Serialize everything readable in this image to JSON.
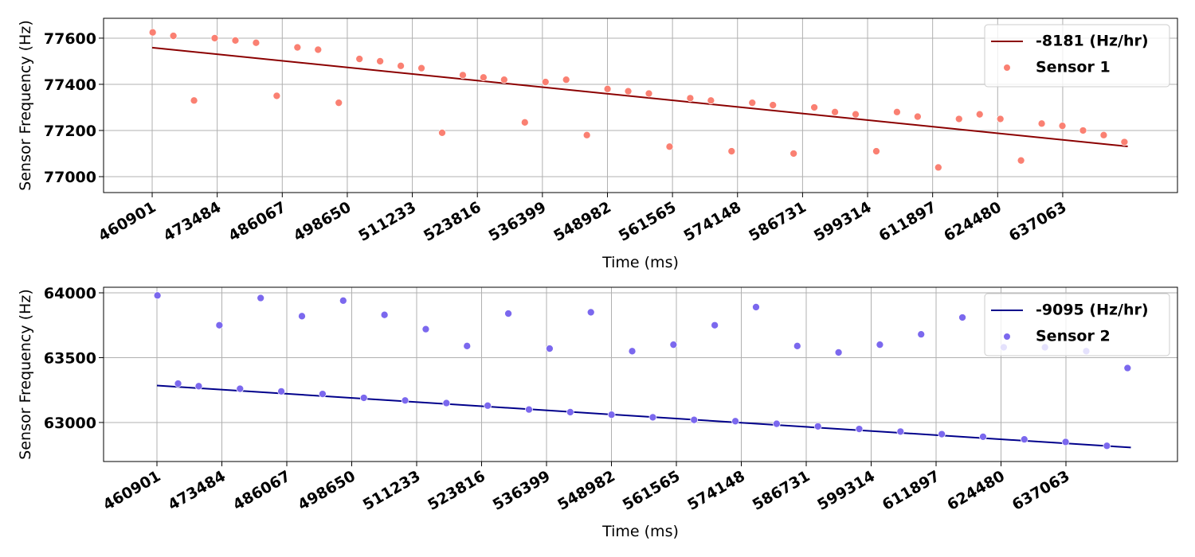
{
  "chart_data": [
    {
      "type": "scatter",
      "xlabel": "Time (ms)",
      "ylabel": "Sensor Frequency (Hz)",
      "xlim": [
        451495,
        659268
      ],
      "ylim": [
        76931,
        77686
      ],
      "xticks": [
        460901,
        473484,
        486067,
        498650,
        511233,
        523816,
        536399,
        548982,
        561565,
        574148,
        586731,
        599314,
        611897,
        624480,
        637063
      ],
      "yticks": [
        77000,
        77200,
        77400,
        77600
      ],
      "grid": true,
      "legend": "upper right",
      "series": [
        {
          "name": "-8181 (Hz/hr)",
          "type": "line",
          "color": "#8b0000",
          "x": [
            460901,
            649646
          ],
          "values": [
            77559,
            77131
          ]
        },
        {
          "name": "Sensor 1",
          "type": "scatter",
          "color": "#fa8072",
          "x": [
            461000,
            465000,
            469000,
            473000,
            477000,
            481000,
            485000,
            489000,
            493000,
            497000,
            501000,
            505000,
            509000,
            513000,
            517000,
            521000,
            525000,
            529000,
            533000,
            537000,
            541000,
            545000,
            549000,
            553000,
            557000,
            561000,
            565000,
            569000,
            573000,
            577000,
            581000,
            585000,
            589000,
            593000,
            597000,
            601000,
            605000,
            609000,
            613000,
            617000,
            621000,
            625000,
            629000,
            633000,
            637000,
            641000,
            645000,
            649000
          ],
          "values": [
            77625,
            77610,
            77330,
            77600,
            77590,
            77580,
            77350,
            77560,
            77550,
            77320,
            77510,
            77500,
            77480,
            77470,
            77190,
            77440,
            77430,
            77420,
            77235,
            77410,
            77420,
            77180,
            77380,
            77370,
            77360,
            77130,
            77340,
            77330,
            77110,
            77320,
            77310,
            77100,
            77300,
            77280,
            77270,
            77110,
            77280,
            77260,
            77040,
            77250,
            77270,
            77250,
            77070,
            77230,
            77220,
            77200,
            77180,
            77150
          ]
        }
      ]
    },
    {
      "type": "scatter",
      "xlabel": "Time (ms)",
      "ylabel": "Sensor Frequency (Hz)",
      "xlim": [
        450557,
        658678
      ],
      "ylim": [
        62699,
        64043
      ],
      "xticks": [
        460901,
        473484,
        486067,
        498650,
        511233,
        523816,
        536399,
        548982,
        561565,
        574148,
        586731,
        599314,
        611897,
        624480,
        637063
      ],
      "yticks": [
        63000,
        63500,
        64000
      ],
      "grid": true,
      "legend": "upper right",
      "series": [
        {
          "name": "-9095 (Hz/hr)",
          "type": "line",
          "color": "#00008b",
          "x": [
            460901,
            649646
          ],
          "values": [
            63285,
            62807
          ]
        },
        {
          "name": "Sensor 2",
          "type": "scatter",
          "color": "#7b68ee",
          "x": [
            461000,
            465000,
            469000,
            473000,
            477000,
            481000,
            485000,
            489000,
            493000,
            497000,
            501000,
            505000,
            509000,
            513000,
            517000,
            521000,
            525000,
            529000,
            533000,
            537000,
            541000,
            545000,
            549000,
            553000,
            557000,
            561000,
            565000,
            569000,
            573000,
            577000,
            581000,
            585000,
            589000,
            593000,
            597000,
            601000,
            605000,
            609000,
            613000,
            617000,
            621000,
            625000,
            629000,
            633000,
            637000,
            641000,
            645000,
            649000
          ],
          "values": [
            63980,
            63300,
            63280,
            63750,
            63260,
            63960,
            63240,
            63820,
            63220,
            63940,
            63190,
            63830,
            63170,
            63720,
            63150,
            63590,
            63130,
            63840,
            63100,
            63570,
            63080,
            63850,
            63060,
            63550,
            63040,
            63600,
            63020,
            63750,
            63010,
            63890,
            62990,
            63590,
            62970,
            63540,
            62950,
            63600,
            62930,
            63680,
            62910,
            63810,
            62890,
            63580,
            62870,
            63580,
            62850,
            63550,
            62820,
            63420
          ]
        }
      ]
    }
  ]
}
